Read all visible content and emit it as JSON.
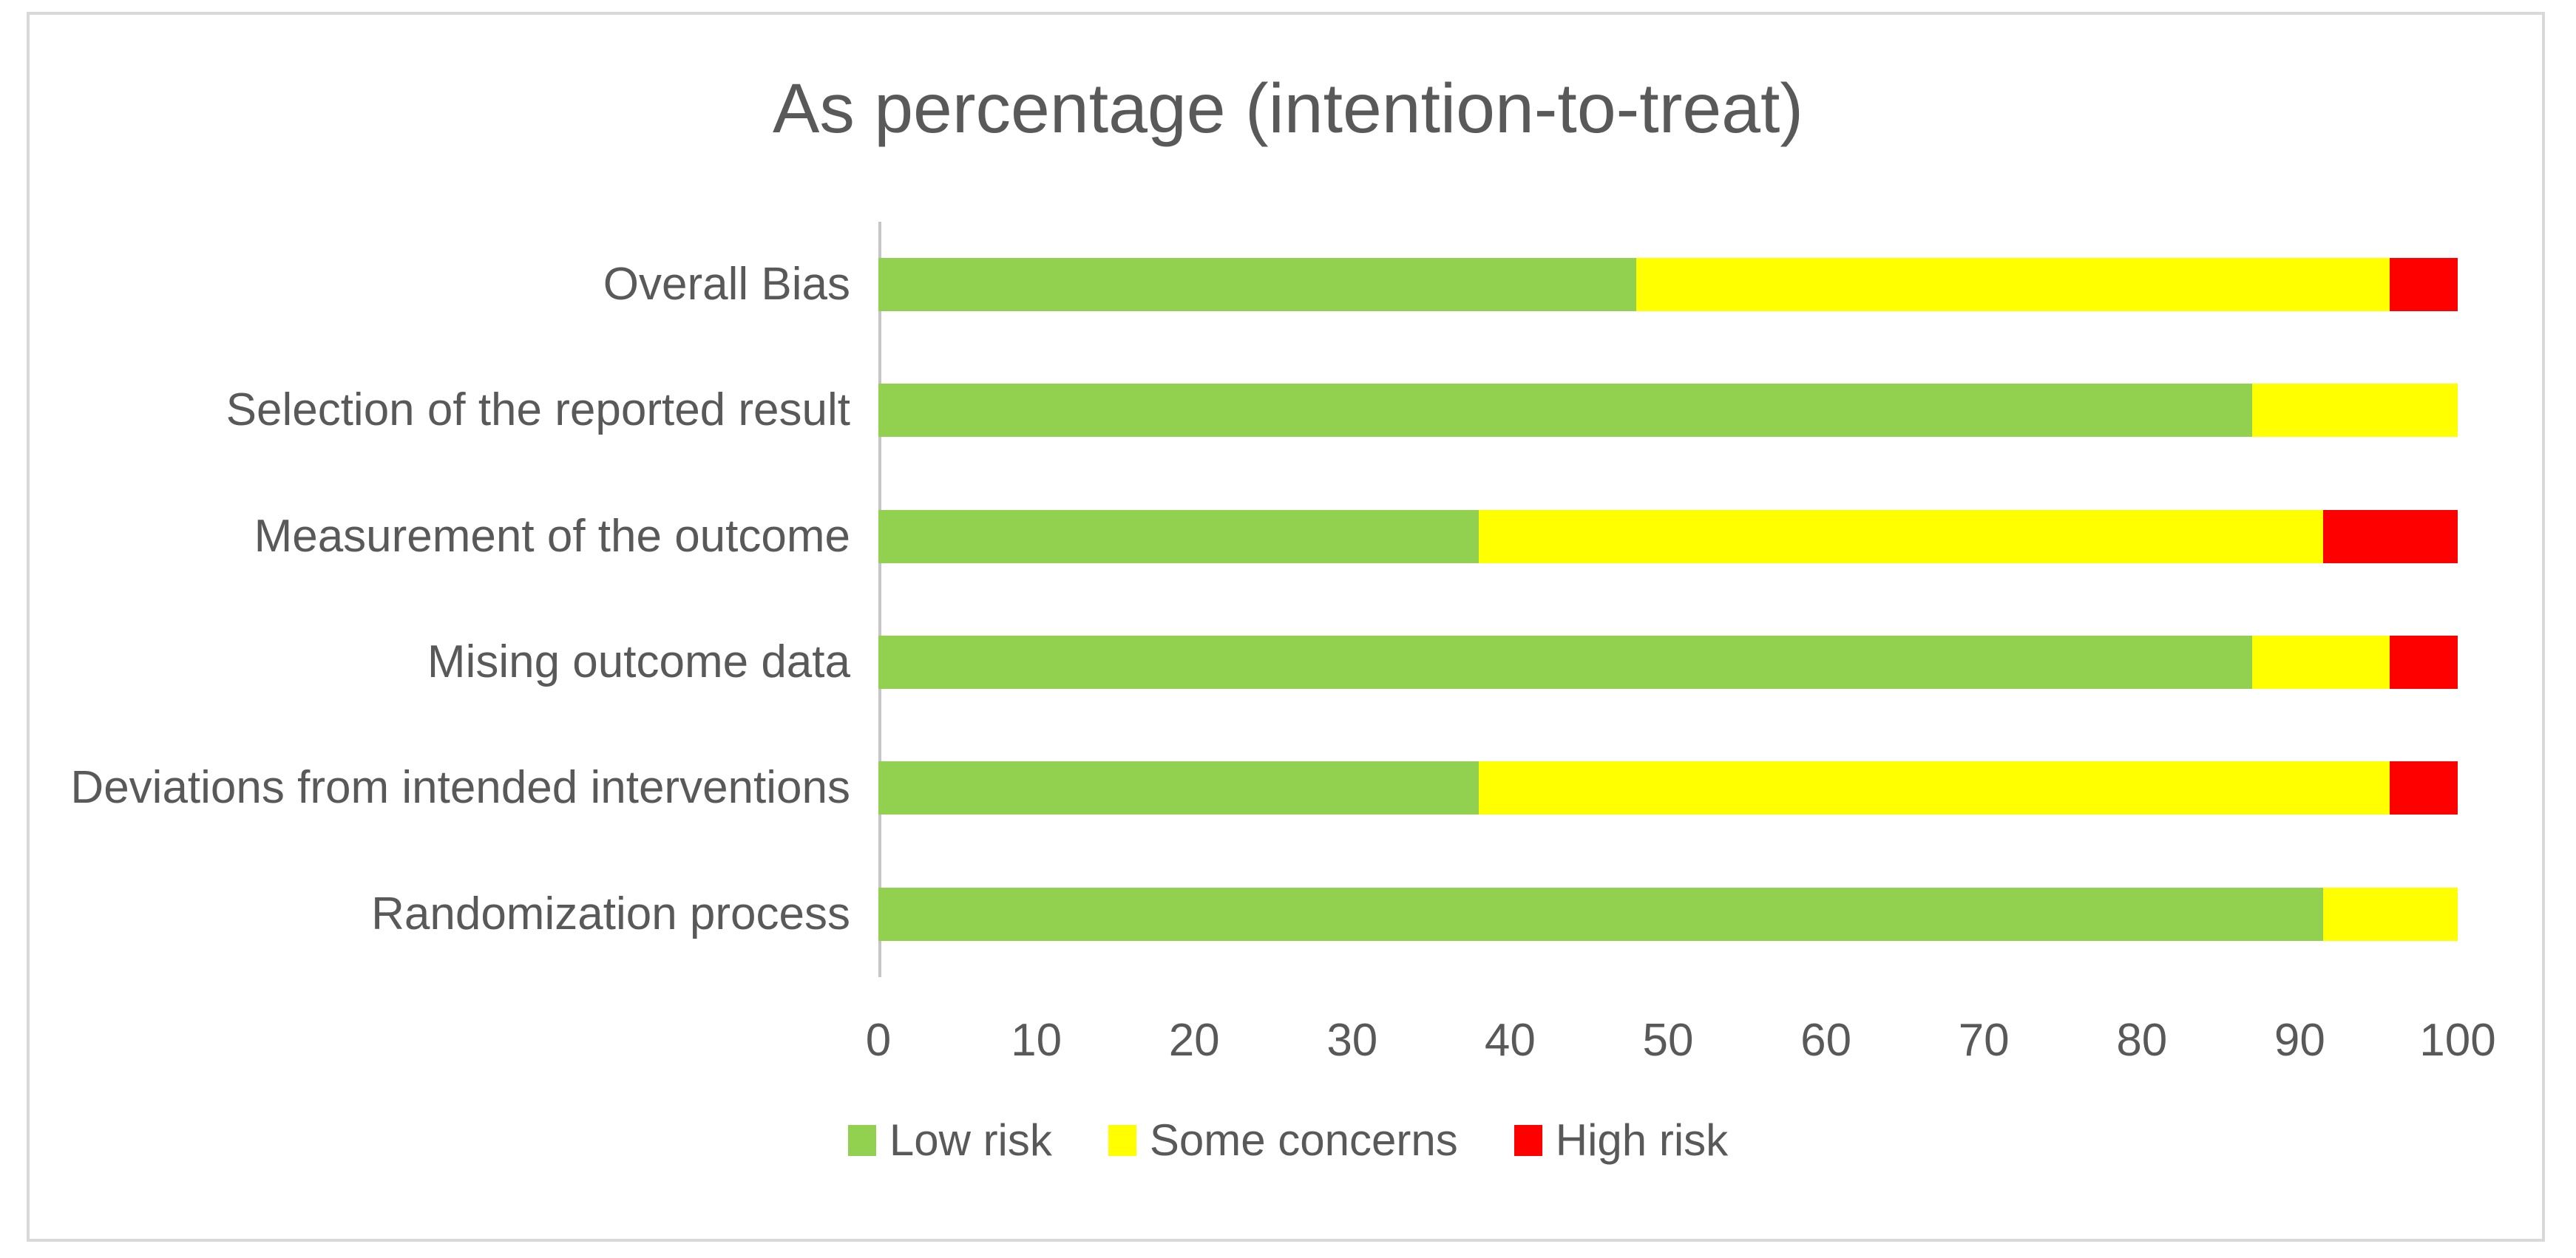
{
  "chart_data": {
    "type": "bar",
    "orientation": "horizontal",
    "stacked": true,
    "title": "As percentage (intention-to-treat)",
    "categories_top_to_bottom": [
      "Overall Bias",
      "Selection of the reported result",
      "Measurement of the outcome",
      "Mising outcome data",
      "Deviations from intended interventions",
      "Randomization process"
    ],
    "series": [
      {
        "name": "Low risk",
        "color": "#92d050",
        "values": [
          48,
          87,
          38,
          87,
          38,
          91.5
        ]
      },
      {
        "name": "Some concerns",
        "color": "#ffff00",
        "values": [
          47.7,
          13,
          53.5,
          8.7,
          57.7,
          8.5
        ]
      },
      {
        "name": "High risk",
        "color": "#ff0000",
        "values": [
          4.3,
          0,
          8.5,
          4.3,
          4.3,
          0
        ]
      }
    ],
    "xlabel": "",
    "ylabel": "",
    "xlim": [
      0,
      100
    ],
    "x_ticks": [
      0,
      10,
      20,
      30,
      40,
      50,
      60,
      70,
      80,
      90,
      100
    ],
    "grid": false,
    "legend_position": "bottom",
    "text_color": "#595959",
    "axis_line_color": "#c6c6c6",
    "frame_border_color": "#d9d9d9"
  }
}
